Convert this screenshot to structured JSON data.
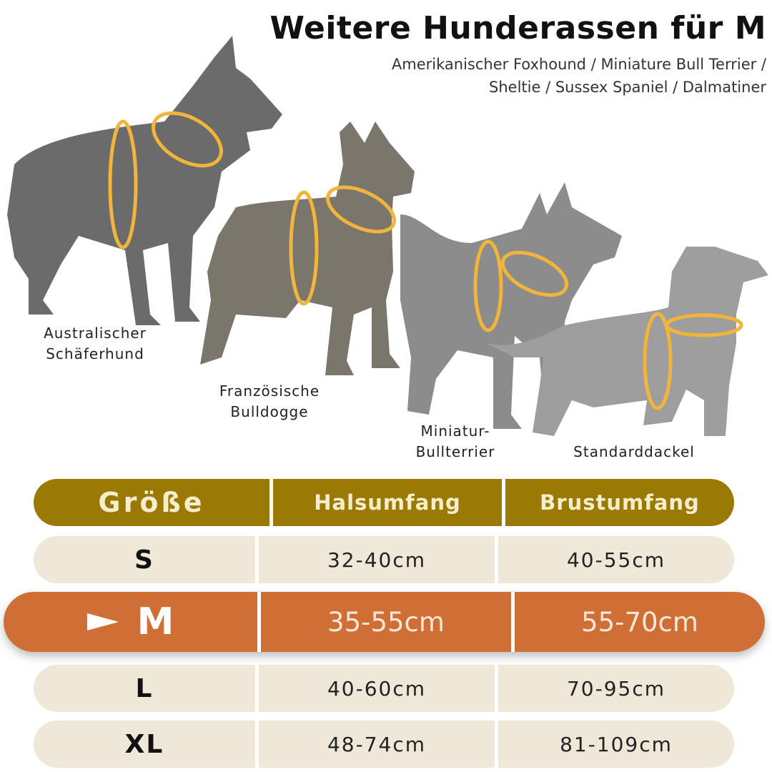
{
  "header": {
    "title": "Weitere Hunderassen für M",
    "subtitle_line1": "Amerikanischer Foxhound / Miniature Bull Terrier /",
    "subtitle_line2": "Sheltie / Sussex Spaniel / Dalmatiner"
  },
  "dogs": [
    {
      "label_line1": "Australischer",
      "label_line2": "Schäferhund",
      "icon": "shepherd-dog-silhouette",
      "color": "#6b6b6b"
    },
    {
      "label_line1": "Französische",
      "label_line2": "Bulldogge",
      "icon": "bulldog-silhouette",
      "color": "#7a766c"
    },
    {
      "label_line1": "Miniatur-",
      "label_line2": "Bullterrier",
      "icon": "bullterrier-silhouette",
      "color": "#8c8c8c"
    },
    {
      "label_line1": "Standarddackel",
      "label_line2": "",
      "icon": "dachshund-silhouette",
      "color": "#9e9e9e"
    }
  ],
  "harness_color": "#f0b53a",
  "size_table": {
    "columns": [
      "Größe",
      "Halsumfang",
      "Brustumfang"
    ],
    "rows": [
      {
        "size": "S",
        "neck": "32-40cm",
        "chest": "40-55cm"
      },
      {
        "size": "M",
        "neck": "35-55cm",
        "chest": "55-70cm",
        "highlighted": true
      },
      {
        "size": "L",
        "neck": "40-60cm",
        "chest": "70-95cm"
      },
      {
        "size": "XL",
        "neck": "48-74cm",
        "chest": "81-109cm"
      }
    ],
    "colors": {
      "header": "#9a7a05",
      "row": "#efe8d9",
      "highlight": "#cf6f35"
    }
  }
}
